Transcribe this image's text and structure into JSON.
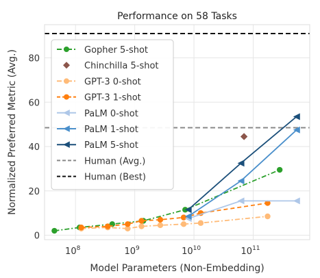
{
  "chart_data": {
    "type": "line",
    "title": "Performance on 58 Tasks",
    "xlabel": "Model Parameters (Non-Embedding)",
    "ylabel": "Normalized Preferred Metric (Avg.)",
    "xscale": "log",
    "xlim": [
      30000000.0,
      900000000000.0
    ],
    "ylim": [
      -2,
      95
    ],
    "yticks": [
      0,
      20,
      40,
      60,
      80
    ],
    "xticks": [
      {
        "value": 100000000.0,
        "base": "10",
        "exp": "8"
      },
      {
        "value": 1000000000.0,
        "base": "10",
        "exp": "9"
      },
      {
        "value": 10000000000.0,
        "base": "10",
        "exp": "10"
      },
      {
        "value": 100000000000.0,
        "base": "10",
        "exp": "11"
      }
    ],
    "grid": true,
    "legend_position": "upper left",
    "series": [
      {
        "name": "Gopher 5-shot",
        "color": "#2ca02c",
        "dash": "dashdot",
        "marker": "circle",
        "x": [
          44000000.0,
          117000000.0,
          417000000.0,
          1400000000.0,
          7100000000.0,
          280000000000.0
        ],
        "y": [
          2,
          3.5,
          5,
          6.5,
          11.5,
          29.5
        ]
      },
      {
        "name": "Chinchilla 5-shot",
        "color": "#8c564b",
        "dash": "none",
        "marker": "diamond",
        "x": [
          70000000000.0
        ],
        "y": [
          44.5
        ]
      },
      {
        "name": "GPT-3 0-shot",
        "color": "#ffbb78",
        "dash": "dashdot",
        "marker": "circle",
        "x": [
          125000000.0,
          350000000.0,
          760000000.0,
          1300000000.0,
          2700000000.0,
          6700000000.0,
          13000000000.0,
          175000000000.0
        ],
        "y": [
          3,
          3.5,
          3,
          4,
          4.5,
          5,
          5.5,
          8.5
        ]
      },
      {
        "name": "GPT-3 1-shot",
        "color": "#ff7f0e",
        "dash": "dashed",
        "marker": "circle",
        "x": [
          125000000.0,
          350000000.0,
          760000000.0,
          1300000000.0,
          2700000000.0,
          6700000000.0,
          13000000000.0,
          175000000000.0
        ],
        "y": [
          3.5,
          4,
          5,
          6.5,
          7,
          8,
          10,
          14.5
        ]
      },
      {
        "name": "PaLM 0-shot",
        "color": "#aec7e8",
        "dash": "solid",
        "marker": "triangle-left",
        "x": [
          8000000000.0,
          62000000000.0,
          540000000000.0
        ],
        "y": [
          7.5,
          15.5,
          15.5
        ]
      },
      {
        "name": "PaLM 1-shot",
        "color": "#4a8fcb",
        "dash": "solid",
        "marker": "triangle-left",
        "x": [
          8000000000.0,
          62000000000.0,
          540000000000.0
        ],
        "y": [
          8.5,
          24.5,
          47.5
        ]
      },
      {
        "name": "PaLM 5-shot",
        "color": "#1b4f7a",
        "dash": "solid",
        "marker": "triangle-left",
        "x": [
          8000000000.0,
          62000000000.0,
          540000000000.0
        ],
        "y": [
          11.5,
          32.5,
          53.5
        ]
      }
    ],
    "hlines": [
      {
        "name": "Human (Avg.)",
        "value": 48.5,
        "color": "#888888",
        "dash": "dashed"
      },
      {
        "name": "Human (Best)",
        "value": 91,
        "color": "#111111",
        "dash": "dashed"
      }
    ]
  }
}
